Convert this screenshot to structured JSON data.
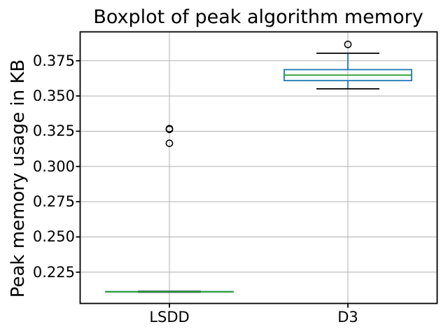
{
  "figure": {
    "background": "#ffffff"
  },
  "chart_data": {
    "type": "boxplot",
    "title": "Boxplot of peak algorithm memory",
    "ylabel": "Peak memory usage in KB",
    "xlabel": "",
    "categories": [
      "LSDD",
      "D3"
    ],
    "ylim": [
      0.2028,
      0.3955
    ],
    "yticks": [
      0.225,
      0.25,
      0.275,
      0.3,
      0.325,
      0.35,
      0.375
    ],
    "ytick_labels": [
      "0.225",
      "0.250",
      "0.275",
      "0.300",
      "0.325",
      "0.350",
      "0.375"
    ],
    "grid": true,
    "legend": false,
    "series": [
      {
        "name": "LSDD",
        "whisker_low": 0.2108,
        "q1": 0.211,
        "median": 0.2111,
        "q3": 0.2112,
        "whisker_high": 0.2114,
        "outliers": [
          0.3268,
          0.3263,
          0.3164
        ]
      },
      {
        "name": "D3",
        "whisker_low": 0.3551,
        "q1": 0.3609,
        "median": 0.3648,
        "q3": 0.3687,
        "whisker_high": 0.3803,
        "outliers": [
          0.3866
        ]
      }
    ],
    "colors": {
      "box": "#1f77b4",
      "whisker": "#1f77b4",
      "median": "#2ca02c",
      "cap": "#000000",
      "outlier_edge": "#000000",
      "grid": "#b0b0b0",
      "spine": "#000000",
      "text": "#000000"
    }
  }
}
